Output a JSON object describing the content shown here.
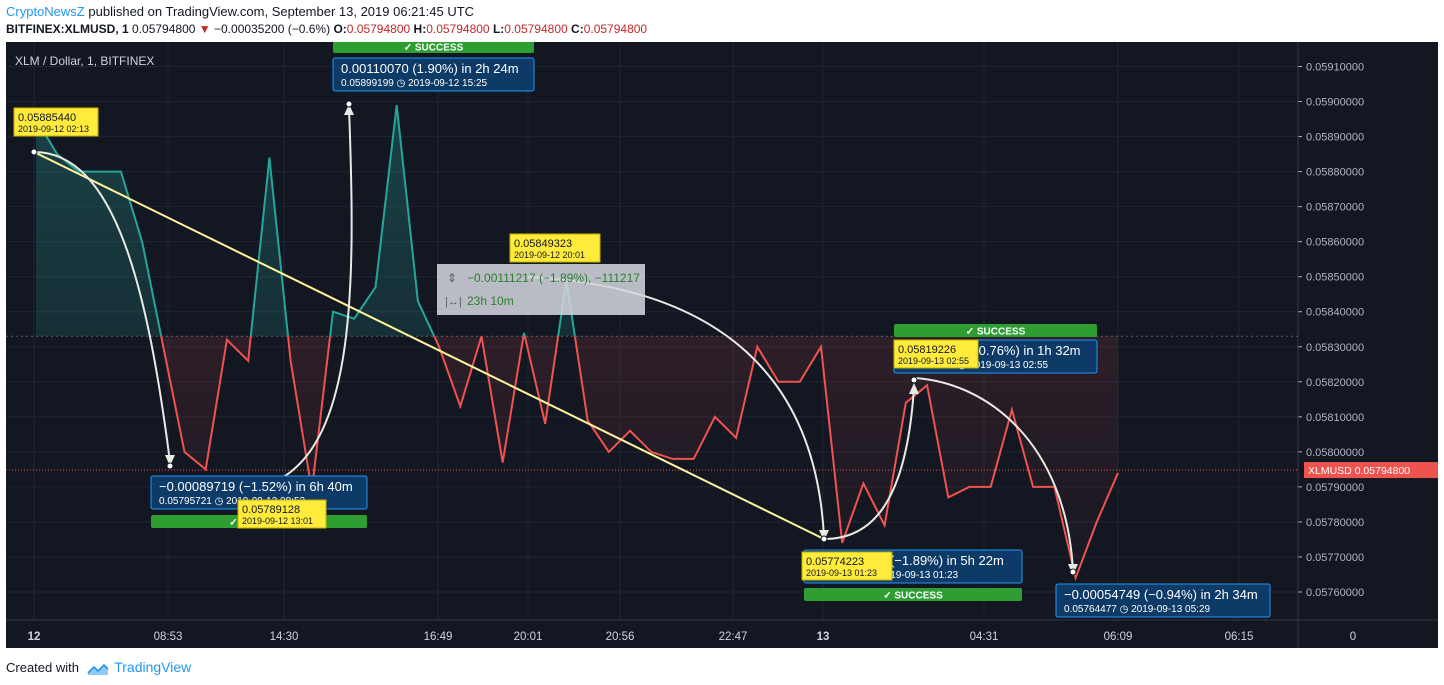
{
  "header": {
    "publisher": "CryptoNewsZ",
    "published_text": "published on TradingView.com, September 13, 2019 06:21:45 UTC",
    "symbol": "BITFINEX:XLMUSD, 1",
    "last": "0.05794800",
    "change": "−0.00035200 (−0.6%)",
    "o_label": "O:",
    "o": "0.05794800",
    "h_label": "H:",
    "h": "0.05794800",
    "l_label": "L:",
    "l": "0.05794800",
    "c_label": "C:",
    "c": "0.05794800"
  },
  "footer": {
    "created_with": "Created with",
    "brand": "TradingView"
  },
  "colors": {
    "background": "#131722",
    "up": "#26a69a",
    "down": "#ef5350",
    "trend": "#fff59d",
    "arrow": "#e8ebe3",
    "label_blue": "#0d3a66",
    "label_border": "#2196f3",
    "note_yellow": "#ffeb3b",
    "success_green": "#2e9e33"
  },
  "chart_data": {
    "type": "line",
    "title": "XLM / Dollar, 1, BITFINEX",
    "xlabel": "",
    "ylabel": "",
    "x_ticks": [
      "12",
      "08:53",
      "14:30",
      "16:49",
      "20:01",
      "20:56",
      "22:47",
      "13",
      "04:31",
      "06:09",
      "06:15",
      "0"
    ],
    "y_ticks": [
      "0.05910000",
      "0.05900000",
      "0.05890000",
      "0.05880000",
      "0.05870000",
      "0.05860000",
      "0.05850000",
      "0.05840000",
      "0.05830000",
      "0.05820000",
      "0.05810000",
      "0.05800000",
      "0.05790000",
      "0.05780000",
      "0.05770000",
      "0.05760000"
    ],
    "ylim": [
      0.05752,
      0.05917
    ],
    "grid": true,
    "last_price_label": "XLMUSD",
    "last_price": "0.05794800",
    "series": [
      {
        "values": [
          [
            0,
            0.05895
          ],
          [
            1,
            0.05885
          ],
          [
            2,
            0.0588
          ],
          [
            3,
            0.0588
          ],
          [
            4,
            0.0588
          ],
          [
            5,
            0.0586
          ],
          [
            6,
            0.0583
          ],
          [
            7,
            0.058
          ],
          [
            8,
            0.05795
          ],
          [
            9,
            0.05832
          ],
          [
            10,
            0.05826
          ],
          [
            11,
            0.05884
          ],
          [
            12,
            0.05826
          ],
          [
            13,
            0.05789
          ],
          [
            14,
            0.0584
          ],
          [
            15,
            0.05838
          ],
          [
            16,
            0.05847
          ],
          [
            17,
            0.05899
          ],
          [
            18,
            0.05843
          ],
          [
            19,
            0.0583
          ],
          [
            20,
            0.05813
          ],
          [
            21,
            0.05833
          ],
          [
            22,
            0.05797
          ],
          [
            23,
            0.05834
          ],
          [
            24,
            0.05808
          ],
          [
            25,
            0.05849
          ],
          [
            26,
            0.05809
          ],
          [
            27,
            0.058
          ],
          [
            28,
            0.05806
          ],
          [
            29,
            0.058
          ],
          [
            30,
            0.05798
          ],
          [
            31,
            0.05798
          ],
          [
            32,
            0.0581
          ],
          [
            33,
            0.05804
          ],
          [
            34,
            0.0583
          ],
          [
            35,
            0.0582
          ],
          [
            36,
            0.0582
          ],
          [
            37,
            0.0583
          ],
          [
            38,
            0.05774
          ],
          [
            39,
            0.05791
          ],
          [
            40,
            0.05779
          ],
          [
            41,
            0.05814
          ],
          [
            42,
            0.05819
          ],
          [
            43,
            0.05787
          ],
          [
            44,
            0.0579
          ],
          [
            45,
            0.0579
          ],
          [
            46,
            0.05812
          ],
          [
            47,
            0.0579
          ],
          [
            48,
            0.0579
          ],
          [
            49,
            0.05764
          ],
          [
            50,
            0.0578
          ],
          [
            51,
            0.05794
          ]
        ]
      }
    ],
    "measures": [
      {
        "text": "0.00110070 (1.90%) in 2h 24m",
        "price": "0.05899199",
        "time": "2019-09-12  15:25",
        "status": "SUCCESS"
      },
      {
        "text": "−0.00089719 (−1.52%) in 6h 40m",
        "price": "0.05795721",
        "time": "2019-09-12  08:53",
        "status": "SUCCESS"
      },
      {
        "text": "−0.00111217 (−1.89%) in 5h 22m",
        "price": "0.05774223",
        "time": "2019-09-13  01:23",
        "status": "SUCCESS"
      },
      {
        "text": "0.00045003 (0.76%) in 1h 32m",
        "price": "0.05819226",
        "time": "2019-09-13  02:55",
        "status": "SUCCESS"
      },
      {
        "text": "−0.00054749 (−0.94%) in 2h 34m",
        "price": "0.05764477",
        "time": "2019-09-13  05:29",
        "status": ""
      }
    ],
    "notes": [
      {
        "price": "0.05885440",
        "time": "2019-09-12 02:13"
      },
      {
        "price": "0.05789128",
        "time": "2019-09-12 13:01"
      },
      {
        "price": "0.05849323",
        "time": "2019-09-12 20:01"
      },
      {
        "price": "0.05774223",
        "time": "2019-09-13 01:23"
      },
      {
        "price": "0.05819226",
        "time": "2019-09-13 02:55"
      }
    ],
    "range_tool": {
      "change": "−0.00111217 (−1.89%), −111217",
      "duration": "23h 10m"
    }
  }
}
